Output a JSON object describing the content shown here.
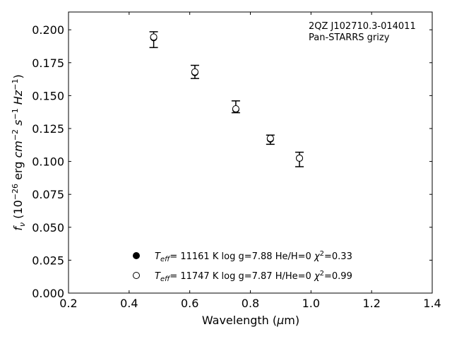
{
  "chart_data": {
    "type": "scatter",
    "title": "",
    "xlabel": "Wavelength (μm)",
    "ylabel": "f_ν (10^-26 erg cm^-2 s^-1 Hz^-1)",
    "xlim": [
      0.2,
      1.4
    ],
    "ylim": [
      0.0,
      0.2135
    ],
    "xticks": [
      0.2,
      0.4,
      0.6,
      0.8,
      1.0,
      1.2,
      1.4
    ],
    "xtick_labels": [
      "0.2",
      "0.4",
      "0.6",
      "0.8",
      "1.0",
      "1.2",
      "1.4"
    ],
    "yticks": [
      0.0,
      0.025,
      0.05,
      0.075,
      0.1,
      0.125,
      0.15,
      0.175,
      0.2
    ],
    "ytick_labels": [
      "0.000",
      "0.025",
      "0.050",
      "0.075",
      "0.100",
      "0.125",
      "0.150",
      "0.175",
      "0.200"
    ],
    "grid": false,
    "annotations": [
      "2QZ J102710.3-014011",
      "Pan-STARRS grizy"
    ],
    "observed": {
      "x": [
        0.481,
        0.617,
        0.752,
        0.866,
        0.962
      ],
      "y": [
        0.1925,
        0.168,
        0.1415,
        0.1165,
        0.1015
      ],
      "yerr": [
        0.006,
        0.005,
        0.0045,
        0.0035,
        0.0055
      ]
    },
    "series": [
      {
        "marker": "filled",
        "x": [
          0.481,
          0.617,
          0.752,
          0.866,
          0.962
        ],
        "y": [
          0.194,
          0.1675,
          0.1395,
          0.117,
          0.1025
        ],
        "legend": {
          "teff": "= 11161 K",
          "logg": "log g=7.88",
          "comp": "He/H=0",
          "chi2": "=0.33"
        }
      },
      {
        "marker": "open",
        "x": [
          0.481,
          0.617,
          0.752,
          0.866,
          0.962
        ],
        "y": [
          0.1945,
          0.168,
          0.14,
          0.1175,
          0.1025
        ],
        "legend": {
          "teff": "= 11747 K",
          "logg": "log g=7.87",
          "comp": "H/He=0",
          "chi2": "=0.99"
        }
      }
    ],
    "legend_position": "lower-center"
  },
  "colors": {
    "marker": "#000000",
    "axis": "#000000",
    "background": "#ffffff"
  }
}
